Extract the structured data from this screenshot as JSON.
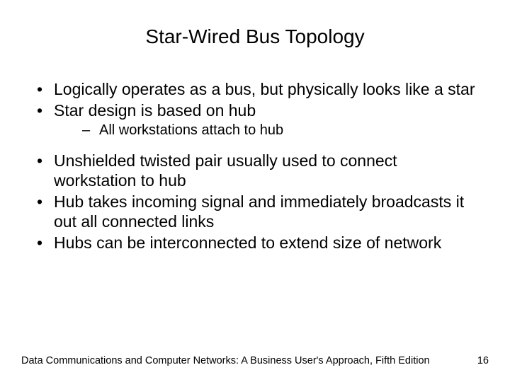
{
  "title": "Star-Wired Bus Topology",
  "bullets": {
    "b1": "Logically operates as a bus, but physically looks like a star",
    "b2": "Star design is based on hub",
    "b2_sub1": "All workstations attach to hub",
    "b3": "Unshielded twisted pair usually used to connect workstation to hub",
    "b4": "Hub takes incoming signal and immediately broadcasts it out all connected links",
    "b5": "Hubs can be interconnected to extend size of network"
  },
  "footer": {
    "text": "Data Communications and Computer Networks: A Business User's Approach, Fifth Edition",
    "page": "16"
  },
  "style": {
    "background": "#ffffff",
    "text_color": "#000000",
    "title_fontsize": 28,
    "body_fontsize": 23,
    "sub_fontsize": 20,
    "footer_fontsize": 14.5
  }
}
